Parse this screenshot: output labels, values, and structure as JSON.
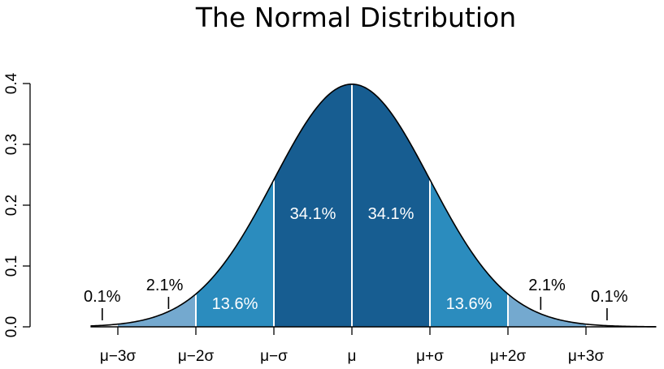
{
  "chart_data": {
    "type": "area",
    "title": "The Normal Distribution",
    "xlabel": "",
    "ylabel": "",
    "xlim": [
      -3.35,
      3.9
    ],
    "ylim": [
      0,
      0.4
    ],
    "y_ticks": [
      {
        "value": 0.0,
        "label": "0.0"
      },
      {
        "value": 0.1,
        "label": "0.1"
      },
      {
        "value": 0.2,
        "label": "0.2"
      },
      {
        "value": 0.3,
        "label": "0.3"
      },
      {
        "value": 0.4,
        "label": "0.4"
      }
    ],
    "x_ticks": [
      {
        "value": -3,
        "label": "μ−3σ"
      },
      {
        "value": -2,
        "label": "μ−2σ"
      },
      {
        "value": -1,
        "label": "μ−σ"
      },
      {
        "value": 0,
        "label": "μ"
      },
      {
        "value": 1,
        "label": "μ+σ"
      },
      {
        "value": 2,
        "label": "μ+2σ"
      },
      {
        "value": 3,
        "label": "μ+3σ"
      }
    ],
    "regions": [
      {
        "from": -3,
        "to": -2,
        "percent": "2.1%",
        "color": "#74a9cf"
      },
      {
        "from": -2,
        "to": -1,
        "percent": "13.6%",
        "color": "#2b8cbe"
      },
      {
        "from": -1,
        "to": 0,
        "percent": "34.1%",
        "color": "#175d91"
      },
      {
        "from": 0,
        "to": 1,
        "percent": "34.1%",
        "color": "#175d91"
      },
      {
        "from": 1,
        "to": 2,
        "percent": "13.6%",
        "color": "#2b8cbe"
      },
      {
        "from": 2,
        "to": 3,
        "percent": "2.1%",
        "color": "#74a9cf"
      }
    ],
    "tail_labels": [
      {
        "side": "left",
        "percent": "0.1%"
      },
      {
        "side": "right",
        "percent": "0.1%"
      }
    ],
    "grid": false
  }
}
